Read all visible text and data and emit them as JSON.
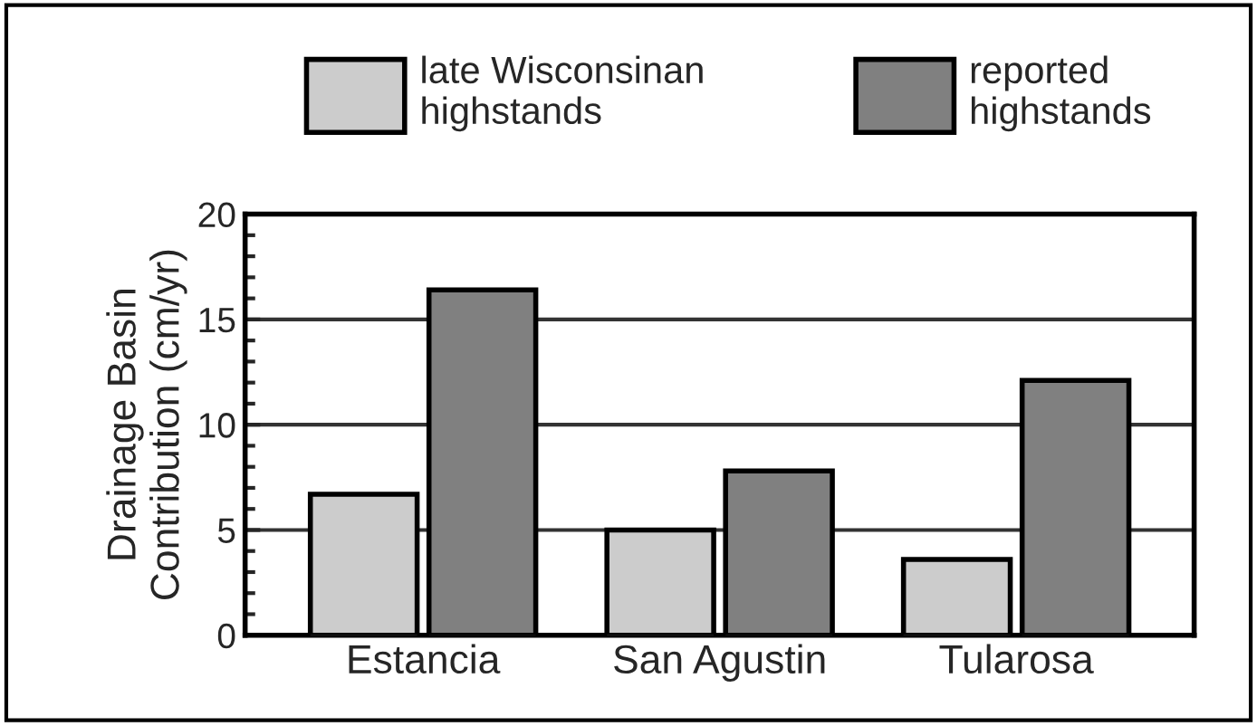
{
  "chart_data": {
    "type": "bar",
    "ylabel": "Drainage Basin\nContribution (cm/yr)",
    "categories": [
      "Estancia",
      "San Agustin",
      "Tularosa"
    ],
    "series": [
      {
        "name": "late Wisconsinan\nhighstands",
        "color": "#cccccc",
        "values": [
          6.7,
          5.0,
          3.6
        ]
      },
      {
        "name": "reported\nhighstands",
        "color": "#808080",
        "values": [
          16.4,
          7.8,
          12.1
        ]
      }
    ],
    "ylim": [
      0,
      20
    ],
    "yticks": [
      0,
      5,
      10,
      15,
      20
    ],
    "grid": "y",
    "legend": "top"
  }
}
